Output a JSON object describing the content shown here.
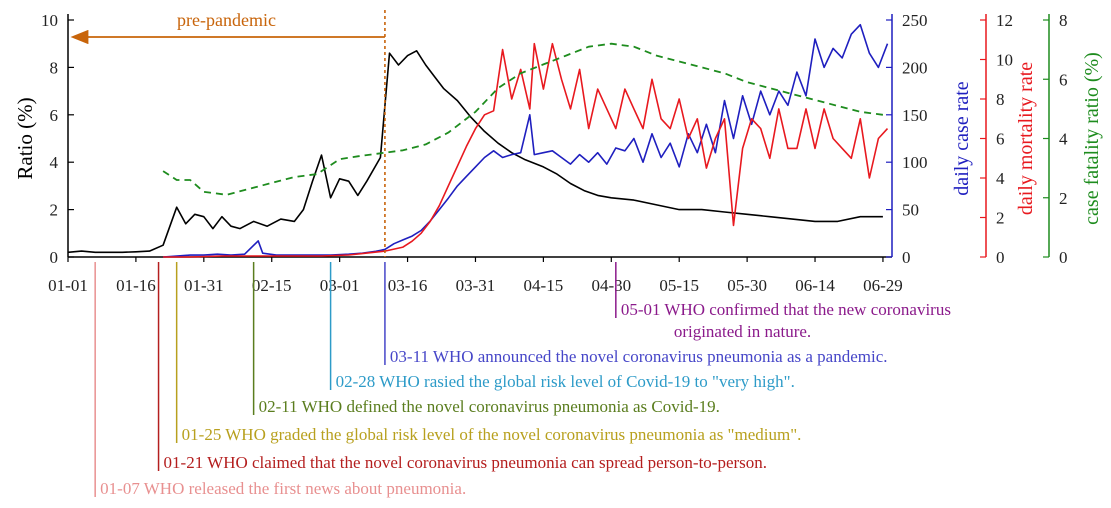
{
  "chart_data": {
    "type": "line",
    "x_ticks": [
      "01-01",
      "01-16",
      "01-31",
      "02-15",
      "03-01",
      "03-16",
      "03-31",
      "04-15",
      "04-30",
      "05-15",
      "05-30",
      "06-14",
      "06-29"
    ],
    "x_range": [
      "01-01",
      "07-01"
    ],
    "axes": {
      "ratio": {
        "label": "Ratio (%)",
        "color": "#000000",
        "range": [
          0,
          10
        ],
        "ticks": [
          "0",
          "2",
          "4",
          "6",
          "8",
          "10"
        ]
      },
      "daily_case": {
        "label": "daily case rate",
        "color": "#1f1fbf",
        "range": [
          0,
          250
        ],
        "ticks": [
          "0",
          "50",
          "100",
          "150",
          "200",
          "250"
        ]
      },
      "daily_mortality": {
        "label": "daily mortality rate",
        "color": "#e8191f",
        "range": [
          0,
          12
        ],
        "ticks": [
          "0",
          "2",
          "4",
          "6",
          "8",
          "10",
          "12"
        ]
      },
      "case_fatality": {
        "label": "case fatality ratio (%)",
        "color": "#1e8c1e",
        "range": [
          0,
          8
        ],
        "ticks": [
          "0",
          "2",
          "4",
          "6",
          "8"
        ]
      }
    },
    "annotation": {
      "text": "pre-pandemic",
      "from": "01-01",
      "to": "03-11",
      "color": "#c8640a"
    },
    "series": [
      {
        "axis": "ratio",
        "color": "#000000",
        "style": "solid",
        "points": [
          [
            "01-01",
            0.2
          ],
          [
            "01-04",
            0.25
          ],
          [
            "01-07",
            0.2
          ],
          [
            "01-10",
            0.2
          ],
          [
            "01-13",
            0.2
          ],
          [
            "01-16",
            0.22
          ],
          [
            "01-19",
            0.25
          ],
          [
            "01-22",
            0.5
          ],
          [
            "01-25",
            2.1
          ],
          [
            "01-27",
            1.4
          ],
          [
            "01-29",
            1.8
          ],
          [
            "01-31",
            1.7
          ],
          [
            "02-02",
            1.2
          ],
          [
            "02-04",
            1.7
          ],
          [
            "02-06",
            1.3
          ],
          [
            "02-08",
            1.2
          ],
          [
            "02-11",
            1.5
          ],
          [
            "02-14",
            1.3
          ],
          [
            "02-17",
            1.6
          ],
          [
            "02-20",
            1.5
          ],
          [
            "02-22",
            2.0
          ],
          [
            "02-24",
            3.2
          ],
          [
            "02-26",
            4.3
          ],
          [
            "02-28",
            2.5
          ],
          [
            "03-01",
            3.3
          ],
          [
            "03-03",
            3.2
          ],
          [
            "03-05",
            2.6
          ],
          [
            "03-07",
            3.2
          ],
          [
            "03-10",
            4.2
          ],
          [
            "03-12",
            8.6
          ],
          [
            "03-14",
            8.1
          ],
          [
            "03-16",
            8.5
          ],
          [
            "03-18",
            8.7
          ],
          [
            "03-20",
            8.1
          ],
          [
            "03-22",
            7.6
          ],
          [
            "03-24",
            7.1
          ],
          [
            "03-27",
            6.6
          ],
          [
            "03-30",
            5.9
          ],
          [
            "04-02",
            5.3
          ],
          [
            "04-05",
            4.8
          ],
          [
            "04-08",
            4.4
          ],
          [
            "04-11",
            4.1
          ],
          [
            "04-15",
            3.8
          ],
          [
            "04-18",
            3.5
          ],
          [
            "04-21",
            3.1
          ],
          [
            "04-24",
            2.8
          ],
          [
            "04-27",
            2.6
          ],
          [
            "04-30",
            2.5
          ],
          [
            "05-05",
            2.4
          ],
          [
            "05-10",
            2.2
          ],
          [
            "05-15",
            2.0
          ],
          [
            "05-20",
            2.0
          ],
          [
            "05-25",
            1.9
          ],
          [
            "05-30",
            1.8
          ],
          [
            "06-04",
            1.7
          ],
          [
            "06-09",
            1.6
          ],
          [
            "06-14",
            1.5
          ],
          [
            "06-19",
            1.5
          ],
          [
            "06-24",
            1.7
          ],
          [
            "06-29",
            1.7
          ]
        ]
      },
      {
        "axis": "daily_case",
        "color": "#1f1fbf",
        "style": "solid",
        "points": [
          [
            "01-22",
            0
          ],
          [
            "01-25",
            1
          ],
          [
            "01-28",
            2
          ],
          [
            "01-31",
            2
          ],
          [
            "02-03",
            3
          ],
          [
            "02-06",
            2
          ],
          [
            "02-09",
            3
          ],
          [
            "02-12",
            17
          ],
          [
            "02-13",
            4
          ],
          [
            "02-16",
            2
          ],
          [
            "02-20",
            2
          ],
          [
            "02-24",
            2
          ],
          [
            "02-28",
            2
          ],
          [
            "03-03",
            3
          ],
          [
            "03-06",
            4
          ],
          [
            "03-09",
            6
          ],
          [
            "03-11",
            8
          ],
          [
            "03-13",
            14
          ],
          [
            "03-15",
            18
          ],
          [
            "03-17",
            22
          ],
          [
            "03-19",
            28
          ],
          [
            "03-21",
            38
          ],
          [
            "03-23",
            50
          ],
          [
            "03-25",
            62
          ],
          [
            "03-27",
            75
          ],
          [
            "03-29",
            85
          ],
          [
            "03-31",
            95
          ],
          [
            "04-02",
            105
          ],
          [
            "04-04",
            112
          ],
          [
            "04-06",
            105
          ],
          [
            "04-08",
            108
          ],
          [
            "04-10",
            110
          ],
          [
            "04-12",
            150
          ],
          [
            "04-13",
            108
          ],
          [
            "04-15",
            110
          ],
          [
            "04-17",
            112
          ],
          [
            "04-19",
            105
          ],
          [
            "04-21",
            98
          ],
          [
            "04-23",
            108
          ],
          [
            "04-25",
            100
          ],
          [
            "04-27",
            110
          ],
          [
            "04-29",
            98
          ],
          [
            "05-01",
            115
          ],
          [
            "05-03",
            112
          ],
          [
            "05-05",
            125
          ],
          [
            "05-07",
            100
          ],
          [
            "05-09",
            130
          ],
          [
            "05-11",
            105
          ],
          [
            "05-13",
            120
          ],
          [
            "05-15",
            95
          ],
          [
            "05-17",
            130
          ],
          [
            "05-19",
            110
          ],
          [
            "05-21",
            140
          ],
          [
            "05-23",
            110
          ],
          [
            "05-25",
            165
          ],
          [
            "05-27",
            125
          ],
          [
            "05-29",
            170
          ],
          [
            "05-31",
            140
          ],
          [
            "06-02",
            175
          ],
          [
            "06-04",
            150
          ],
          [
            "06-06",
            175
          ],
          [
            "06-08",
            160
          ],
          [
            "06-10",
            195
          ],
          [
            "06-12",
            170
          ],
          [
            "06-14",
            230
          ],
          [
            "06-16",
            200
          ],
          [
            "06-18",
            220
          ],
          [
            "06-20",
            210
          ],
          [
            "06-22",
            235
          ],
          [
            "06-24",
            245
          ],
          [
            "06-26",
            215
          ],
          [
            "06-28",
            200
          ],
          [
            "06-30",
            225
          ]
        ]
      },
      {
        "axis": "daily_mortality",
        "color": "#e8191f",
        "style": "solid",
        "points": [
          [
            "01-22",
            0
          ],
          [
            "01-28",
            0
          ],
          [
            "02-04",
            0.05
          ],
          [
            "02-10",
            0.05
          ],
          [
            "02-15",
            0.05
          ],
          [
            "02-20",
            0.05
          ],
          [
            "02-26",
            0.05
          ],
          [
            "03-03",
            0.1
          ],
          [
            "03-07",
            0.2
          ],
          [
            "03-11",
            0.3
          ],
          [
            "03-13",
            0.4
          ],
          [
            "03-15",
            0.5
          ],
          [
            "03-17",
            0.8
          ],
          [
            "03-19",
            1.2
          ],
          [
            "03-21",
            1.8
          ],
          [
            "03-23",
            2.6
          ],
          [
            "03-25",
            3.6
          ],
          [
            "03-27",
            4.6
          ],
          [
            "03-29",
            5.6
          ],
          [
            "03-31",
            6.5
          ],
          [
            "04-02",
            7.2
          ],
          [
            "04-04",
            7.4
          ],
          [
            "04-06",
            10.5
          ],
          [
            "04-08",
            8.0
          ],
          [
            "04-10",
            9.5
          ],
          [
            "04-12",
            7.5
          ],
          [
            "04-13",
            10.8
          ],
          [
            "04-15",
            8.5
          ],
          [
            "04-17",
            10.8
          ],
          [
            "04-19",
            9.0
          ],
          [
            "04-21",
            7.5
          ],
          [
            "04-23",
            9.5
          ],
          [
            "04-25",
            6.5
          ],
          [
            "04-27",
            8.5
          ],
          [
            "04-29",
            7.5
          ],
          [
            "05-01",
            6.5
          ],
          [
            "05-03",
            8.5
          ],
          [
            "05-05",
            7.5
          ],
          [
            "05-07",
            6.5
          ],
          [
            "05-09",
            9.0
          ],
          [
            "05-11",
            7.0
          ],
          [
            "05-13",
            6.5
          ],
          [
            "05-15",
            8.0
          ],
          [
            "05-17",
            6.0
          ],
          [
            "05-19",
            7.0
          ],
          [
            "05-21",
            4.5
          ],
          [
            "05-23",
            6.0
          ],
          [
            "05-25",
            7.0
          ],
          [
            "05-27",
            1.6
          ],
          [
            "05-29",
            5.5
          ],
          [
            "05-31",
            7.0
          ],
          [
            "06-02",
            6.5
          ],
          [
            "06-04",
            5.0
          ],
          [
            "06-06",
            7.5
          ],
          [
            "06-08",
            5.5
          ],
          [
            "06-10",
            5.5
          ],
          [
            "06-12",
            7.5
          ],
          [
            "06-14",
            5.5
          ],
          [
            "06-16",
            7.5
          ],
          [
            "06-18",
            6.0
          ],
          [
            "06-20",
            5.5
          ],
          [
            "06-22",
            5.0
          ],
          [
            "06-24",
            7.0
          ],
          [
            "06-26",
            4.0
          ],
          [
            "06-28",
            6.0
          ],
          [
            "06-30",
            6.5
          ]
        ]
      },
      {
        "axis": "case_fatality",
        "color": "#1e8c1e",
        "style": "dashed",
        "points": [
          [
            "01-22",
            2.9
          ],
          [
            "01-25",
            2.6
          ],
          [
            "01-28",
            2.6
          ],
          [
            "01-31",
            2.2
          ],
          [
            "02-05",
            2.1
          ],
          [
            "02-10",
            2.3
          ],
          [
            "02-15",
            2.5
          ],
          [
            "02-20",
            2.7
          ],
          [
            "02-25",
            2.8
          ],
          [
            "03-01",
            3.3
          ],
          [
            "03-05",
            3.4
          ],
          [
            "03-10",
            3.5
          ],
          [
            "03-15",
            3.6
          ],
          [
            "03-20",
            3.8
          ],
          [
            "03-25",
            4.2
          ],
          [
            "03-31",
            4.9
          ],
          [
            "04-05",
            5.7
          ],
          [
            "04-10",
            6.2
          ],
          [
            "04-15",
            6.5
          ],
          [
            "04-20",
            6.8
          ],
          [
            "04-25",
            7.1
          ],
          [
            "04-30",
            7.2
          ],
          [
            "05-05",
            7.1
          ],
          [
            "05-10",
            6.8
          ],
          [
            "05-15",
            6.6
          ],
          [
            "05-20",
            6.4
          ],
          [
            "05-25",
            6.2
          ],
          [
            "05-30",
            5.9
          ],
          [
            "06-04",
            5.7
          ],
          [
            "06-09",
            5.5
          ],
          [
            "06-14",
            5.3
          ],
          [
            "06-19",
            5.1
          ],
          [
            "06-24",
            4.9
          ],
          [
            "06-29",
            4.8
          ]
        ]
      }
    ],
    "events": [
      {
        "date": "05-01",
        "text": "05-01 WHO confirmed that the new coronavirus",
        "text2": "originated in nature.",
        "color": "#8b1a8b"
      },
      {
        "date": "03-11",
        "text": "03-11 WHO announced the novel coronavirus pneumonia as a pandemic.",
        "color": "#4646c8"
      },
      {
        "date": "02-28",
        "text": "02-28 WHO rasied the global risk level of Covid-19 to \"very high\".",
        "color": "#2d9bc8"
      },
      {
        "date": "02-11",
        "text": "02-11 WHO defined the novel coronavirus pneumonia as Covid-19.",
        "color": "#5a7d1e"
      },
      {
        "date": "01-25",
        "text": "01-25 WHO graded the global risk level of the novel coronavirus pneumonia as \"medium\".",
        "color": "#b8a01e"
      },
      {
        "date": "01-21",
        "text": "01-21 WHO claimed that the novel coronavirus pneumonia can spread person-to-person.",
        "color": "#b41e1e"
      },
      {
        "date": "01-07",
        "text": "01-07 WHO released the first news about pneumonia.",
        "color": "#e89090"
      }
    ]
  }
}
